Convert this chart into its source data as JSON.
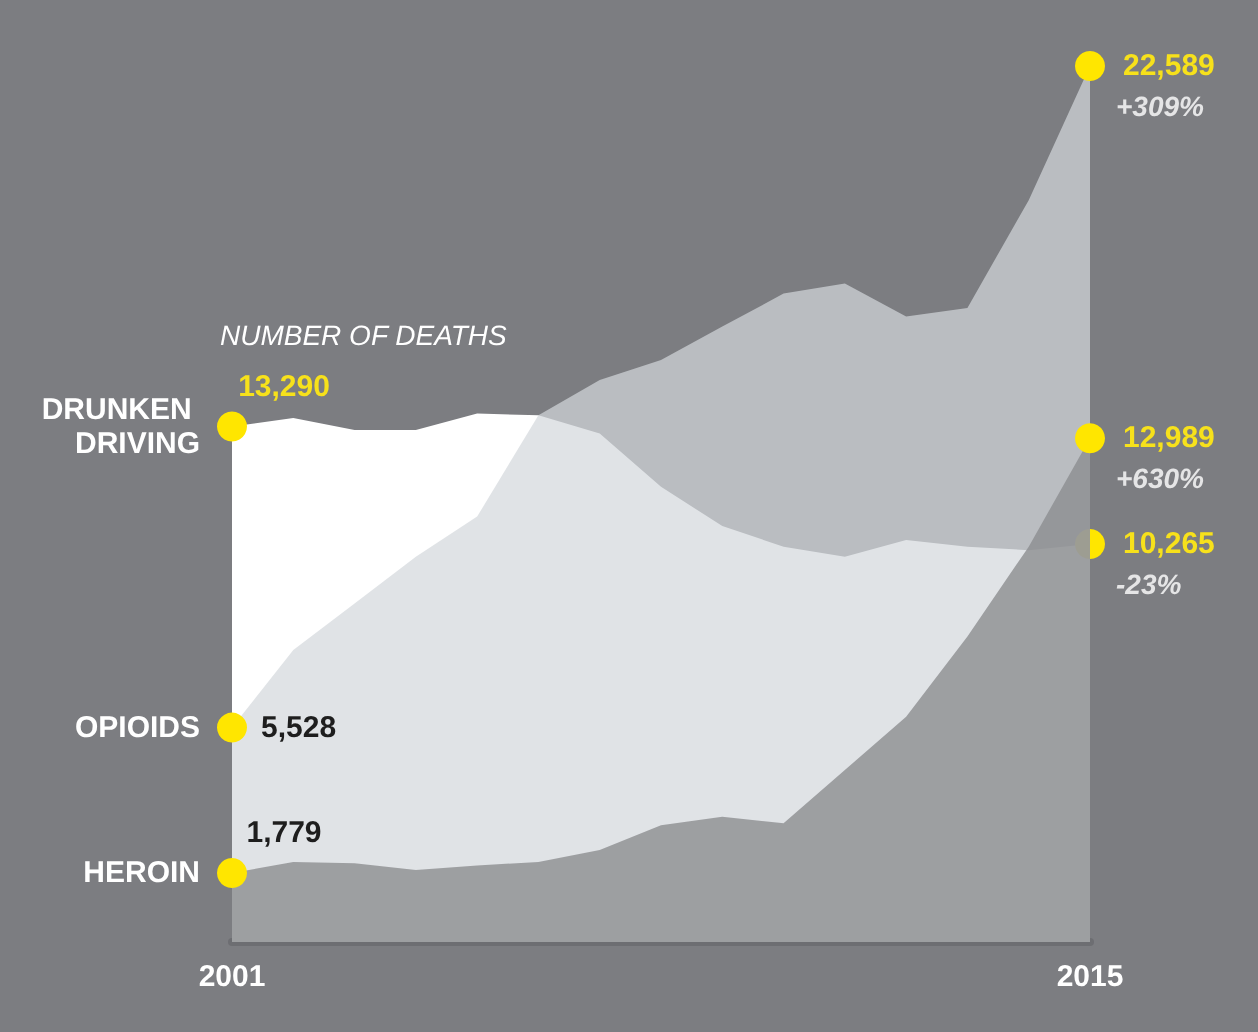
{
  "chart_data": {
    "type": "area",
    "ylabel": "NUMBER OF DEATHS",
    "x": [
      2001,
      2002,
      2003,
      2004,
      2005,
      2006,
      2007,
      2008,
      2009,
      2010,
      2011,
      2012,
      2013,
      2014,
      2015
    ],
    "xlim": [
      2001,
      2015
    ],
    "xticks": [
      2001,
      2015
    ],
    "tick_labels": "x",
    "grid": false,
    "legend": false,
    "series": [
      {
        "name": "DRUNKEN DRIVING",
        "color": "#ffffff",
        "values": [
          13290,
          13510,
          13200,
          13200,
          13630,
          13580,
          13115,
          11740,
          10725,
          10195,
          9935,
          10365,
          10195,
          10105,
          10265
        ],
        "value_labels": [
          "13,290",
          null,
          null,
          null,
          null,
          null,
          null,
          null,
          null,
          null,
          null,
          null,
          null,
          null,
          "10,265"
        ]
      },
      {
        "name": "OPIOIDS",
        "color": "#d4d8dc",
        "values": [
          5528,
          7530,
          8730,
          9935,
          10970,
          13580,
          14490,
          15010,
          15870,
          16720,
          16980,
          16130,
          16350,
          19130,
          22589
        ],
        "value_labels": [
          "5,528",
          null,
          null,
          null,
          null,
          null,
          null,
          null,
          null,
          null,
          null,
          null,
          null,
          null,
          "22,589"
        ]
      },
      {
        "name": "HEROIN",
        "color": "#8c8d90",
        "values": [
          1779,
          2063,
          2030,
          1855,
          1975,
          2063,
          2370,
          3010,
          3230,
          3060,
          4435,
          5810,
          7875,
          10195,
          12989
        ],
        "value_labels": [
          "1,779",
          null,
          null,
          null,
          null,
          null,
          null,
          null,
          null,
          null,
          null,
          null,
          null,
          null,
          "12,989"
        ]
      }
    ],
    "marker": "none",
    "annotations": [
      "-23%",
      "+309%",
      "+630%"
    ]
  }
}
